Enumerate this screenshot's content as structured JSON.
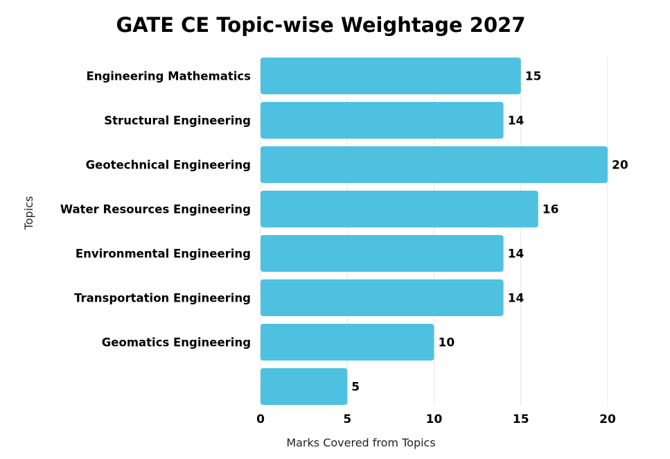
{
  "chart_data": {
    "type": "bar",
    "orientation": "horizontal",
    "title": "GATE CE Topic-wise Weightage 2027",
    "xlabel": "Marks Covered from Topics",
    "ylabel": "Topics",
    "categories": [
      "Engineering Mathematics",
      "Structural Engineering",
      "Geotechnical Engineering",
      "Water Resources Engineering",
      "Environmental Engineering",
      "Transportation Engineering",
      "Geomatics Engineering",
      ""
    ],
    "values": [
      15,
      14,
      20,
      16,
      14,
      14,
      10,
      5
    ],
    "xlim": [
      0,
      20
    ],
    "xticks": [
      0,
      5,
      10,
      15,
      20
    ],
    "grid": "vertical",
    "bar_color": "#4FC1E0"
  }
}
